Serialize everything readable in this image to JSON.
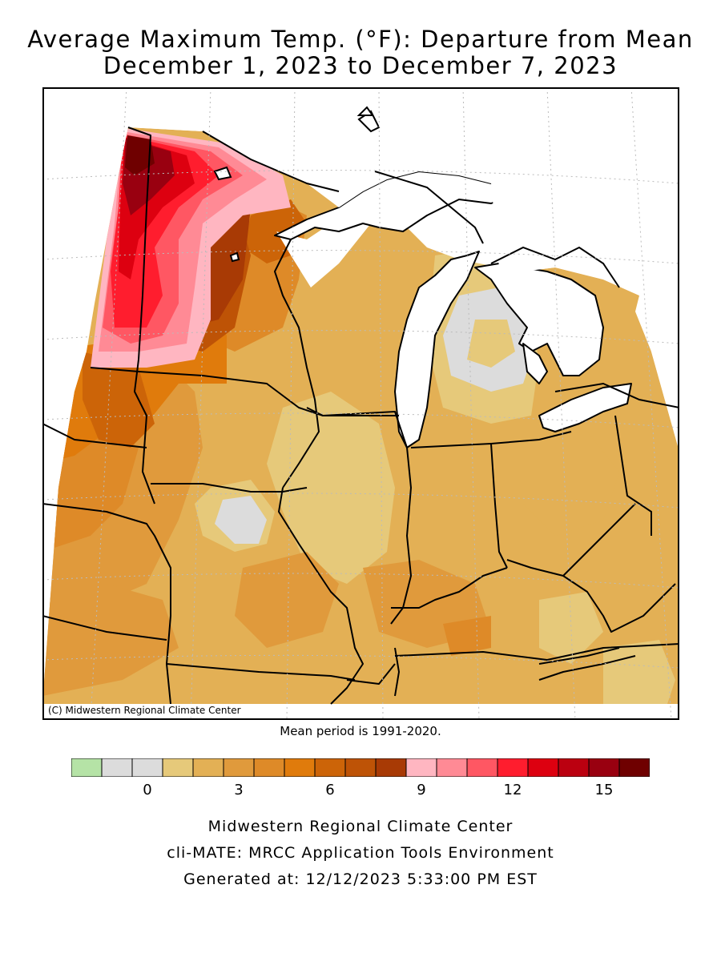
{
  "title": {
    "line1": "Average Maximum Temp. (°F): Departure from Mean",
    "line2": "December 1, 2023 to December 7, 2023"
  },
  "map": {
    "credit": "(C) Midwestern Regional Climate Center",
    "mean_period": "Mean period is 1991-2020."
  },
  "legend": {
    "colors": [
      "#b5e3a6",
      "#dcdcdc",
      "#dcdcdc",
      "#e6c97a",
      "#e3b055",
      "#e09a3c",
      "#de8a28",
      "#e07b0c",
      "#cc6408",
      "#be5306",
      "#a83a05",
      "#ffb6c1",
      "#ff8a95",
      "#ff5763",
      "#ff1d2e",
      "#dd0010",
      "#bb0010",
      "#990010",
      "#6f0000"
    ],
    "ticks": [
      {
        "label": "0",
        "index": 2
      },
      {
        "label": "3",
        "index": 5
      },
      {
        "label": "6",
        "index": 8
      },
      {
        "label": "9",
        "index": 11
      },
      {
        "label": "12",
        "index": 14
      },
      {
        "label": "15",
        "index": 17
      }
    ]
  },
  "footer": {
    "line1": "Midwestern Regional Climate Center",
    "line2": "cli-MATE: MRCC Application Tools Environment",
    "line3": "Generated at: 12/12/2023 5:33:00 PM EST"
  }
}
